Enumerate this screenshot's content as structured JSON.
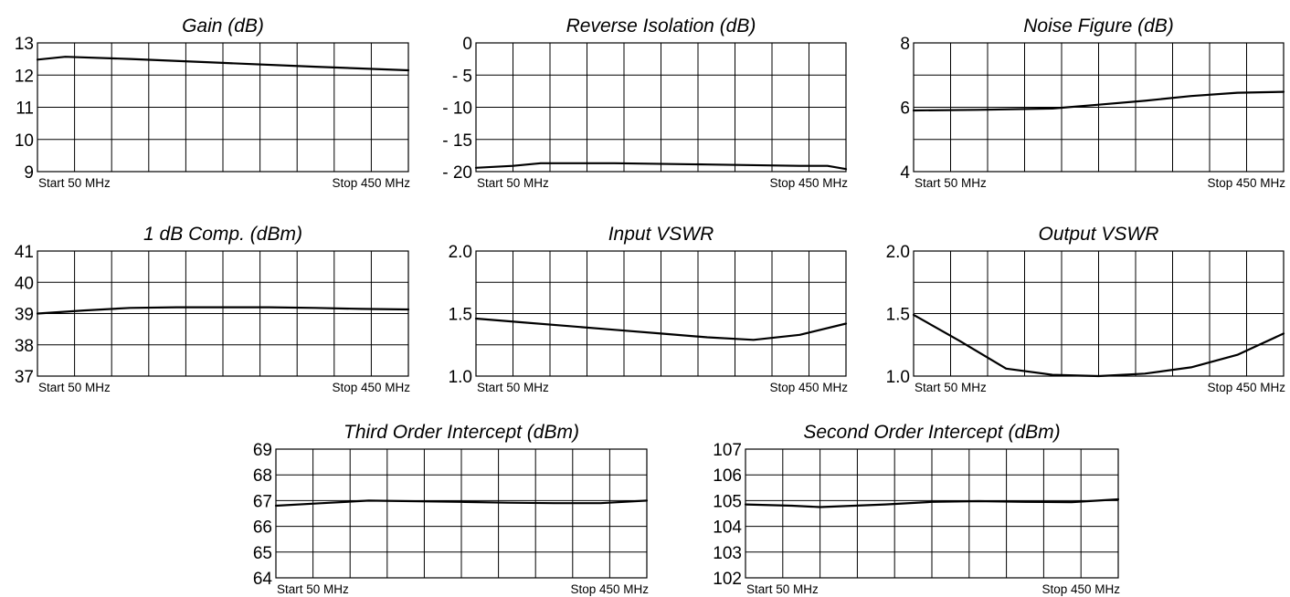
{
  "chart_data": [
    {
      "id": "gain",
      "type": "line",
      "title": "Gain (dB)",
      "ylim": [
        9,
        13
      ],
      "ytick_labels": [
        "13",
        "12",
        "11",
        "10",
        "9"
      ],
      "xlabel_start": "Start  50 MHz",
      "xlabel_stop": "Stop 450 MHz",
      "grid": true,
      "xlim": [
        50,
        450
      ],
      "series": [
        {
          "x": [
            50,
            80,
            150,
            250,
            350,
            450
          ],
          "y": [
            12.48,
            12.57,
            12.5,
            12.38,
            12.26,
            12.15
          ]
        }
      ]
    },
    {
      "id": "reverse-isolation",
      "type": "line",
      "title": "Reverse Isolation (dB)",
      "ylim": [
        -20,
        0
      ],
      "ytick_labels": [
        "0",
        "- 5",
        "- 10",
        "- 15",
        "- 20"
      ],
      "xlabel_start": "Start  50 MHz",
      "xlabel_stop": "Stop 450 MHz",
      "grid": true,
      "xlim": [
        50,
        450
      ],
      "series": [
        {
          "x": [
            50,
            90,
            120,
            200,
            300,
            400,
            430,
            450
          ],
          "y": [
            -19.4,
            -19.1,
            -18.7,
            -18.7,
            -18.9,
            -19.1,
            -19.1,
            -19.6
          ]
        }
      ]
    },
    {
      "id": "noise-figure",
      "type": "line",
      "title": "Noise Figure (dB)",
      "ylim": [
        4,
        8
      ],
      "ytick_labels": [
        "8",
        "6",
        "4"
      ],
      "xlabel_start": "Start 50 MHz",
      "xlabel_stop": "Stop 450 MHz",
      "grid": true,
      "xlim": [
        50,
        450
      ],
      "series": [
        {
          "x": [
            50,
            120,
            200,
            250,
            300,
            350,
            400,
            450
          ],
          "y": [
            5.9,
            5.92,
            5.96,
            6.08,
            6.2,
            6.35,
            6.45,
            6.48
          ]
        }
      ]
    },
    {
      "id": "one-db-comp",
      "type": "line",
      "title": "1 dB Comp. (dBm)",
      "ylim": [
        37,
        41
      ],
      "ytick_labels": [
        "41",
        "40",
        "39",
        "38",
        "37"
      ],
      "xlabel_start": "Start 50 MHz",
      "xlabel_stop": "Stop 450 MHz",
      "grid": true,
      "xlim": [
        50,
        450
      ],
      "series": [
        {
          "x": [
            50,
            100,
            150,
            200,
            250,
            300,
            350,
            400,
            450
          ],
          "y": [
            39.0,
            39.1,
            39.18,
            39.2,
            39.2,
            39.2,
            39.18,
            39.15,
            39.13
          ]
        }
      ]
    },
    {
      "id": "input-vswr",
      "type": "line",
      "title": "Input VSWR",
      "ylim": [
        1.0,
        2.0
      ],
      "ytick_labels": [
        "2.0",
        "1.5",
        "1.0"
      ],
      "xlabel_start": "Start 50 MHz",
      "xlabel_stop": "Stop 450 MHz",
      "grid": true,
      "xlim": [
        50,
        450
      ],
      "series": [
        {
          "x": [
            50,
            100,
            150,
            200,
            250,
            300,
            350,
            400,
            450
          ],
          "y": [
            1.46,
            1.43,
            1.4,
            1.37,
            1.34,
            1.31,
            1.29,
            1.33,
            1.42
          ]
        }
      ]
    },
    {
      "id": "output-vswr",
      "type": "line",
      "title": "Output VSWR",
      "ylim": [
        1.0,
        2.0
      ],
      "ytick_labels": [
        "2.0",
        "1.5",
        "1.0"
      ],
      "xlabel_start": "Start 50 MHz",
      "xlabel_stop": "Stop 450 MHz",
      "grid": true,
      "xlim": [
        50,
        450
      ],
      "series": [
        {
          "x": [
            50,
            100,
            150,
            200,
            250,
            300,
            350,
            400,
            450
          ],
          "y": [
            1.49,
            1.28,
            1.06,
            1.01,
            1.0,
            1.02,
            1.07,
            1.17,
            1.34
          ]
        }
      ]
    },
    {
      "id": "third-order-intercept",
      "type": "line",
      "title": "Third Order Intercept (dBm)",
      "ylim": [
        64,
        69
      ],
      "ytick_labels": [
        "69",
        "68",
        "67",
        "66",
        "65",
        "64"
      ],
      "xlabel_start": "Start 50 MHz",
      "xlabel_stop": "Stop 450 MHz",
      "grid": true,
      "xlim": [
        50,
        450
      ],
      "series": [
        {
          "x": [
            50,
            100,
            150,
            250,
            300,
            350,
            400,
            450
          ],
          "y": [
            66.8,
            66.9,
            67.0,
            66.95,
            66.92,
            66.9,
            66.9,
            67.0
          ]
        }
      ]
    },
    {
      "id": "second-order-intercept",
      "type": "line",
      "title": "Second Order Intercept (dBm)",
      "ylim": [
        102,
        107
      ],
      "ytick_labels": [
        "107",
        "106",
        "105",
        "104",
        "103",
        "102"
      ],
      "xlabel_start": "Start 50 MHz",
      "xlabel_stop": "Stop 450 MHz",
      "grid": true,
      "xlim": [
        50,
        450
      ],
      "series": [
        {
          "x": [
            50,
            100,
            130,
            200,
            250,
            300,
            350,
            400,
            450
          ],
          "y": [
            104.85,
            104.8,
            104.75,
            104.85,
            104.95,
            104.98,
            104.95,
            104.94,
            105.05
          ]
        }
      ]
    }
  ]
}
